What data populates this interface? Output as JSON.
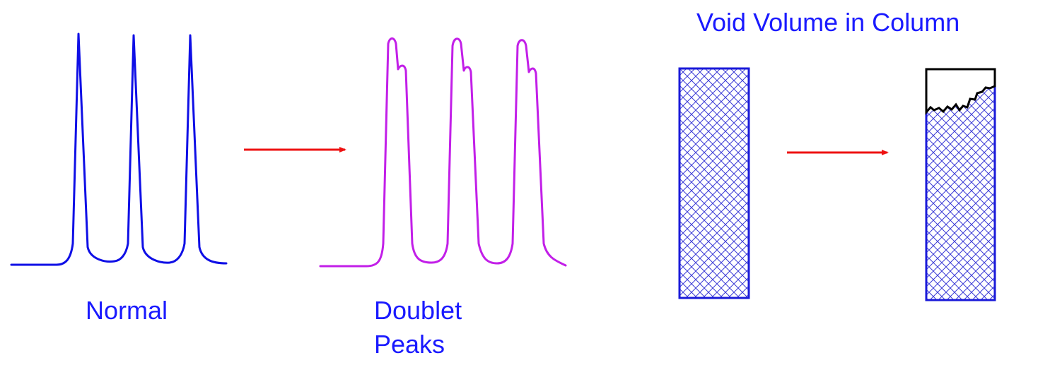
{
  "labels": {
    "normal": "Normal",
    "doublet_line1": "Doublet",
    "doublet_line2": "Peaks",
    "void_title": "Void Volume in Column"
  },
  "colors": {
    "normal_trace": "#0f0fe6",
    "doublet_trace": "#c21fe8",
    "arrow": "#ee1111",
    "text": "#1a1aff",
    "column_border": "#1a1ad9",
    "column_hatch": "#3b3bd6",
    "void_outline": "#000000"
  },
  "panels": [
    {
      "name": "normal-chromatogram",
      "peaks": 3,
      "peak_shape": "single"
    },
    {
      "name": "doublet-chromatogram",
      "peaks": 3,
      "peak_shape": "doublet"
    },
    {
      "name": "packed-column",
      "state": "fully packed"
    },
    {
      "name": "voided-column",
      "state": "void at inlet"
    }
  ]
}
